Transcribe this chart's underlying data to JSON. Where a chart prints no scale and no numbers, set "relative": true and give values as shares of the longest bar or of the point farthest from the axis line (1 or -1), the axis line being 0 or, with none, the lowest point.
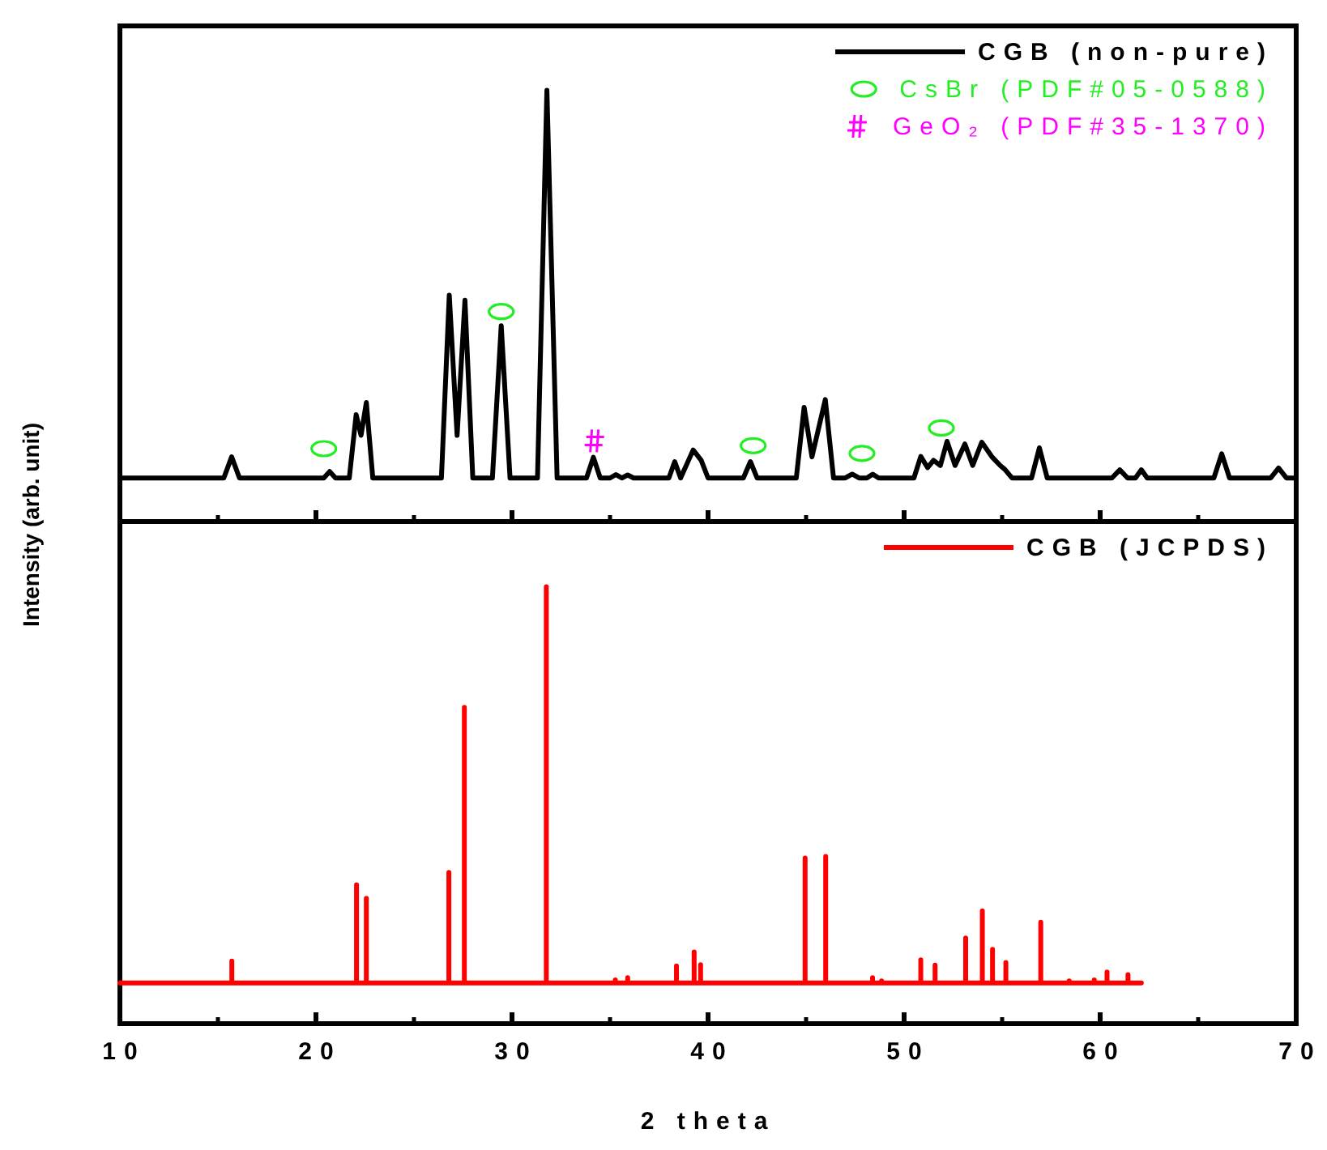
{
  "chart_data": [
    {
      "type": "line",
      "ylabel": "Intensity (arb. unit)",
      "relative": true,
      "legend": "top right",
      "tick_labels": false,
      "xlim": [
        10,
        70
      ],
      "xticks": [
        10,
        {
          "value": 15,
          "label": null
        },
        20,
        {
          "value": 25,
          "label": null
        },
        30,
        {
          "value": 35,
          "label": null
        },
        40,
        {
          "value": 45,
          "label": null
        },
        50,
        {
          "value": 55,
          "label": null
        },
        60,
        {
          "value": 65,
          "label": null
        },
        70
      ],
      "series": [
        {
          "name": "CGB (non-pure)",
          "color": "#000000",
          "x": [
            10,
            15.3,
            15.7,
            16.1,
            20.4,
            20.7,
            21.0,
            21.7,
            22.05,
            22.3,
            22.57,
            22.9,
            26.4,
            26.8,
            27.2,
            27.6,
            28.0,
            29.0,
            29.45,
            29.9,
            31.3,
            31.78,
            32.3,
            33.8,
            34.15,
            34.5,
            35.0,
            35.3,
            35.6,
            35.9,
            36.2,
            38.0,
            38.3,
            38.6,
            39.24,
            39.65,
            40.0,
            41.8,
            42.16,
            42.5,
            44.5,
            44.9,
            45.3,
            45.98,
            46.4,
            47.0,
            47.35,
            47.7,
            48.1,
            48.4,
            48.7,
            50.5,
            50.85,
            51.2,
            51.5,
            51.85,
            52.19,
            52.6,
            53.1,
            53.5,
            53.96,
            54.5,
            54.9,
            55.14,
            55.5,
            56.5,
            56.9,
            57.3,
            60.6,
            61.0,
            61.4,
            61.8,
            62.1,
            62.4,
            65.8,
            66.2,
            66.6,
            68.7,
            69.1,
            69.5,
            70
          ],
          "values": [
            0.101,
            0.101,
            0.15,
            0.101,
            0.101,
            0.116,
            0.101,
            0.101,
            0.248,
            0.2,
            0.276,
            0.101,
            0.101,
            0.525,
            0.2,
            0.513,
            0.101,
            0.101,
            0.454,
            0.101,
            0.101,
            1.0,
            0.101,
            0.101,
            0.149,
            0.101,
            0.101,
            0.109,
            0.101,
            0.108,
            0.101,
            0.101,
            0.139,
            0.101,
            0.166,
            0.142,
            0.101,
            0.101,
            0.139,
            0.101,
            0.101,
            0.265,
            0.15,
            0.283,
            0.101,
            0.101,
            0.11,
            0.101,
            0.101,
            0.11,
            0.101,
            0.101,
            0.151,
            0.125,
            0.142,
            0.13,
            0.186,
            0.13,
            0.18,
            0.13,
            0.184,
            0.149,
            0.13,
            0.121,
            0.101,
            0.101,
            0.171,
            0.101,
            0.101,
            0.12,
            0.101,
            0.101,
            0.12,
            0.101,
            0.101,
            0.157,
            0.101,
            0.101,
            0.124,
            0.101,
            0.101
          ]
        },
        {
          "type": "scatter",
          "name": "CsBr (PDF#05-0588)",
          "color": "#22ee22",
          "marker": "circle",
          "x": [
            20.4,
            29.45,
            42.3,
            47.85,
            51.9
          ],
          "values": [
            0.169,
            0.487,
            0.176,
            0.158,
            0.217
          ]
        },
        {
          "type": "scatter",
          "name": "GeO₂ (PDF#35-1370)",
          "color": "#ff00ff",
          "marker": "cross",
          "x": [
            34.2
          ],
          "values": [
            0.187
          ]
        }
      ]
    },
    {
      "type": "line",
      "xlabel": "2 theta",
      "relative": true,
      "legend": "top right",
      "tick_labels": "x",
      "xlim": [
        10,
        70
      ],
      "xticks": [
        10,
        {
          "value": 15,
          "label": null
        },
        20,
        {
          "value": 25,
          "label": null
        },
        30,
        {
          "value": 35,
          "label": null
        },
        40,
        {
          "value": 45,
          "label": null
        },
        50,
        {
          "value": 55,
          "label": null
        },
        60,
        {
          "value": 65,
          "label": null
        },
        70
      ],
      "series": [
        {
          "name": "CGB (JCPDS)",
          "color": "#ff0000",
          "x": [
            10,
            15.71,
            15.71,
            15.71,
            22.07,
            22.07,
            22.07,
            22.57,
            22.57,
            22.57,
            26.78,
            26.78,
            26.78,
            27.57,
            27.57,
            27.57,
            31.75,
            31.75,
            31.75,
            35.27,
            35.27,
            35.27,
            35.9,
            35.9,
            35.9,
            38.39,
            38.39,
            38.39,
            39.29,
            39.29,
            39.29,
            39.62,
            39.62,
            39.62,
            44.95,
            44.95,
            44.95,
            46.0,
            46.0,
            46.0,
            48.39,
            48.39,
            48.39,
            48.85,
            48.85,
            48.85,
            50.85,
            50.85,
            50.85,
            51.58,
            51.58,
            51.58,
            53.14,
            53.14,
            53.14,
            53.99,
            53.99,
            53.99,
            54.51,
            54.51,
            54.51,
            55.19,
            55.19,
            55.19,
            56.97,
            56.97,
            56.97,
            58.42,
            58.42,
            58.42,
            59.7,
            59.7,
            59.7,
            60.35,
            60.35,
            60.35,
            61.42,
            61.42,
            61.42,
            62.1
          ],
          "values": [
            0.093,
            0.093,
            0.143,
            0.093,
            0.093,
            0.318,
            0.093,
            0.093,
            0.287,
            0.093,
            0.093,
            0.346,
            0.093,
            0.093,
            0.724,
            0.093,
            0.093,
            1.0,
            0.093,
            0.093,
            0.1,
            0.093,
            0.093,
            0.105,
            0.093,
            0.093,
            0.132,
            0.093,
            0.093,
            0.164,
            0.093,
            0.093,
            0.135,
            0.093,
            0.093,
            0.379,
            0.093,
            0.093,
            0.383,
            0.093,
            0.093,
            0.105,
            0.093,
            0.093,
            0.098,
            0.093,
            0.093,
            0.146,
            0.093,
            0.093,
            0.134,
            0.093,
            0.093,
            0.196,
            0.093,
            0.093,
            0.258,
            0.093,
            0.093,
            0.17,
            0.093,
            0.093,
            0.14,
            0.093,
            0.093,
            0.232,
            0.093,
            0.093,
            0.098,
            0.093,
            0.093,
            0.1,
            0.093,
            0.093,
            0.118,
            0.093,
            0.093,
            0.112,
            0.093,
            0.093
          ]
        }
      ]
    }
  ]
}
